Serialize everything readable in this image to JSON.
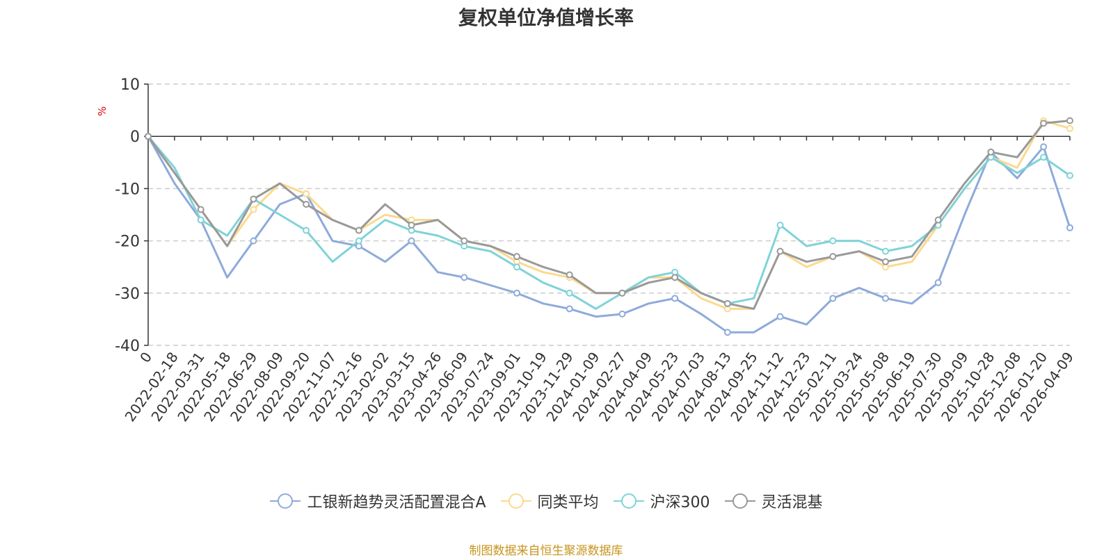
{
  "chart_data": {
    "type": "line",
    "title": "复权单位净值增长率",
    "ylabel": "%",
    "ylim": [
      -40,
      10
    ],
    "yticks": [
      10,
      0,
      -10,
      -20,
      -30,
      -40
    ],
    "grid": true,
    "legend_position": "bottom",
    "source_note": "制图数据来自恒生聚源数据库",
    "categories": [
      "0",
      "2022-02-18",
      "2022-03-31",
      "2022-05-18",
      "2022-06-29",
      "2022-08-09",
      "2022-09-20",
      "2022-11-07",
      "2022-12-16",
      "2023-02-02",
      "2023-03-15",
      "2023-04-26",
      "2023-06-09",
      "2023-07-24",
      "2023-09-01",
      "2023-10-19",
      "2023-11-29",
      "2024-01-09",
      "2024-02-27",
      "2024-04-09",
      "2024-05-23",
      "2024-07-03",
      "2024-08-13",
      "2024-09-25",
      "2024-11-12",
      "2024-12-23",
      "2025-02-11",
      "2025-03-24",
      "2025-05-08",
      "2025-06-19",
      "2025-07-30",
      "2025-09-09",
      "2025-10-28",
      "2025-12-08",
      "2026-01-20",
      "2026-04-09"
    ],
    "series": [
      {
        "name": "工银新趋势灵活配置混合A",
        "color": "#8eaadb",
        "values": [
          0,
          -9,
          -16,
          -27,
          -20,
          -13,
          -11,
          -20,
          -21,
          -24,
          -20,
          -26,
          -27,
          -28.5,
          -30,
          -32,
          -33,
          -34.5,
          -34,
          -32,
          -31,
          -34,
          -37.5,
          -37.5,
          -34.5,
          -36,
          -31,
          -29,
          -31,
          -32,
          -28,
          -15,
          -3,
          -8,
          -2,
          -17.5
        ]
      },
      {
        "name": "同类平均",
        "color": "#fcd98e",
        "values": [
          0,
          -7,
          -14,
          -21,
          -14,
          -9,
          -11,
          -16,
          -18,
          -15,
          -16,
          -16,
          -20,
          -21,
          -24,
          -26,
          -27,
          -30,
          -30,
          -27,
          -27,
          -31,
          -33,
          -33,
          -22,
          -25,
          -23,
          -22,
          -25,
          -24,
          -17,
          -10,
          -4,
          -6,
          3,
          1.5
        ]
      },
      {
        "name": "沪深300",
        "color": "#7fd3d8",
        "values": [
          0,
          -6,
          -16,
          -19,
          -12,
          -15,
          -18,
          -24,
          -20,
          -16,
          -18,
          -19,
          -21,
          -22,
          -25,
          -28,
          -30,
          -33,
          -30,
          -27,
          -26,
          -30,
          -32,
          -31,
          -17,
          -21,
          -20,
          -20,
          -22,
          -21,
          -17,
          -10,
          -4,
          -7,
          -4,
          -7.5
        ]
      },
      {
        "name": "灵活混基",
        "color": "#999999",
        "values": [
          0,
          -7,
          -14,
          -21,
          -12,
          -9,
          -13,
          -16,
          -18,
          -13,
          -17,
          -16,
          -20,
          -21,
          -23,
          -25,
          -26.5,
          -30,
          -30,
          -28,
          -27,
          -30,
          -32,
          -33,
          -22,
          -24,
          -23,
          -22,
          -24,
          -23,
          -16,
          -9,
          -3,
          -4,
          2.5,
          3
        ]
      }
    ]
  }
}
